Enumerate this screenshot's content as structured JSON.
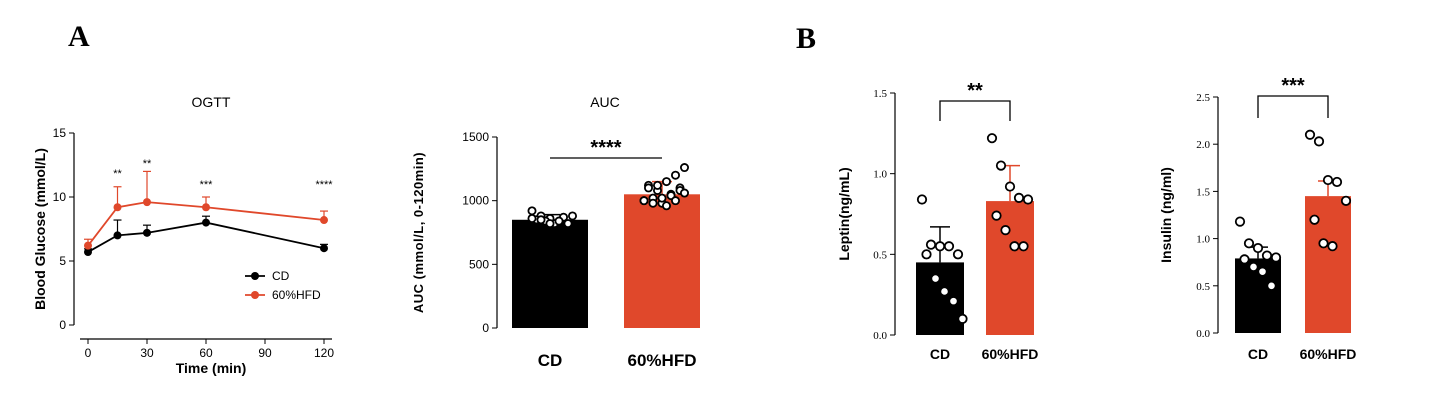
{
  "panels": {
    "a": "A",
    "b": "B"
  },
  "colors": {
    "cd": "#000000",
    "hfd": "#e0482b"
  },
  "chart_data": [
    {
      "type": "line",
      "title": "OGTT",
      "xlabel": "Time (min)",
      "ylabel": "Blood Glucose (mmol/L)",
      "x": [
        0,
        15,
        30,
        60,
        120
      ],
      "xticks": [
        0,
        30,
        60,
        90,
        120
      ],
      "xlim": [
        0,
        120
      ],
      "yticks": [
        0,
        5,
        10,
        15
      ],
      "ylim": [
        0,
        15
      ],
      "series": [
        {
          "name": "CD",
          "values": [
            5.7,
            7.0,
            7.2,
            8.0,
            6.0
          ],
          "errors": [
            0.25,
            1.2,
            0.6,
            0.5,
            0.3
          ]
        },
        {
          "name": "60%HFD",
          "values": [
            6.2,
            9.2,
            9.6,
            9.2,
            8.2
          ],
          "errors": [
            0.5,
            1.6,
            2.4,
            0.8,
            0.7
          ]
        }
      ],
      "significance": [
        {
          "x": 15,
          "label": "**"
        },
        {
          "x": 30,
          "label": "**"
        },
        {
          "x": 60,
          "label": "***"
        },
        {
          "x": 120,
          "label": "****"
        }
      ],
      "legend_position": "bottom-right"
    },
    {
      "type": "bar",
      "title": "AUC",
      "ylabel": "AUC (mmol/L, 0-120min)",
      "categories": [
        "CD",
        "60%HFD"
      ],
      "values": [
        850,
        1050
      ],
      "errors": [
        40,
        100
      ],
      "yticks": [
        0,
        500,
        1000,
        1500
      ],
      "ylim": [
        0,
        1500
      ],
      "points": [
        [
          920,
          880,
          860,
          830,
          820,
          850,
          840,
          820,
          870,
          880,
          860,
          850,
          820,
          840
        ],
        [
          1000,
          1020,
          980,
          1050,
          1100,
          1120,
          1080,
          1150,
          1200,
          1260,
          1000,
          980,
          1020,
          1040,
          1080,
          1100,
          1120,
          960,
          1000,
          1060
        ]
      ],
      "significance": "****"
    },
    {
      "type": "bar",
      "ylabel": "Leptin(ng/mL)",
      "categories": [
        "CD",
        "60%HFD"
      ],
      "values": [
        0.45,
        0.83
      ],
      "errors": [
        0.22,
        0.22
      ],
      "yticks": [
        0.0,
        0.5,
        1.0,
        1.5
      ],
      "ylim": [
        0,
        1.5
      ],
      "points": [
        [
          0.84,
          0.56,
          0.55,
          0.55,
          0.5,
          0.5,
          0.35,
          0.27,
          0.21,
          0.1
        ],
        [
          1.22,
          1.05,
          0.92,
          0.85,
          0.84,
          0.74,
          0.65,
          0.55,
          0.55
        ]
      ],
      "significance": "**"
    },
    {
      "type": "bar",
      "ylabel": "Insulin (ng/ml)",
      "categories": [
        "CD",
        "60%HFD"
      ],
      "values": [
        0.79,
        1.45
      ],
      "errors": [
        0.12,
        0.16
      ],
      "yticks": [
        0.0,
        0.5,
        1.0,
        1.5,
        2.0,
        2.5
      ],
      "ylim": [
        0,
        2.5
      ],
      "points": [
        [
          1.18,
          0.95,
          0.9,
          0.82,
          0.8,
          0.78,
          0.7,
          0.65,
          0.5
        ],
        [
          2.1,
          2.03,
          1.62,
          1.6,
          1.4,
          1.2,
          0.95,
          0.92
        ]
      ],
      "significance": "***"
    }
  ]
}
